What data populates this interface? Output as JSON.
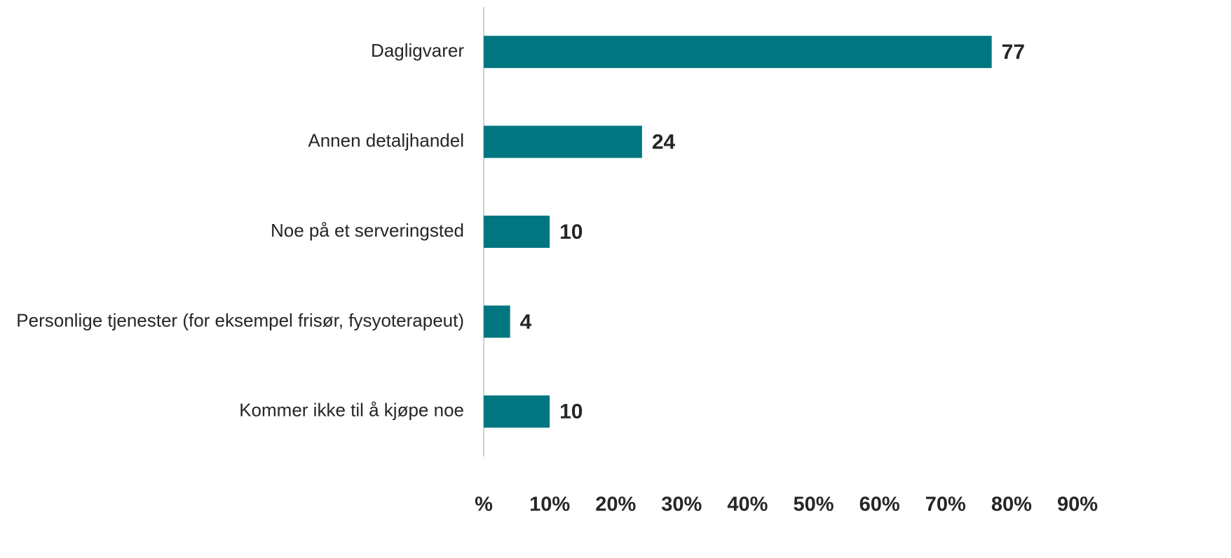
{
  "chart_data": {
    "type": "bar",
    "orientation": "horizontal",
    "categories": [
      "Dagligvarer",
      "Annen detaljhandel",
      "Noe på et serveringsted",
      "Personlige tjenester (for eksempel frisør, fysyoterapeut)",
      "Kommer ikke til å kjøpe noe"
    ],
    "values": [
      77,
      24,
      10,
      4,
      10
    ],
    "color": "#007681",
    "xlim": [
      0,
      90
    ],
    "xticks": [
      {
        "value": 0,
        "label": "%"
      },
      {
        "value": 10,
        "label": "10%"
      },
      {
        "value": 20,
        "label": "20%"
      },
      {
        "value": 30,
        "label": "30%"
      },
      {
        "value": 40,
        "label": "40%"
      },
      {
        "value": 50,
        "label": "50%"
      },
      {
        "value": 60,
        "label": "60%"
      },
      {
        "value": 70,
        "label": "70%"
      },
      {
        "value": 80,
        "label": "80%"
      },
      {
        "value": 90,
        "label": "90%"
      }
    ],
    "grid": false
  }
}
